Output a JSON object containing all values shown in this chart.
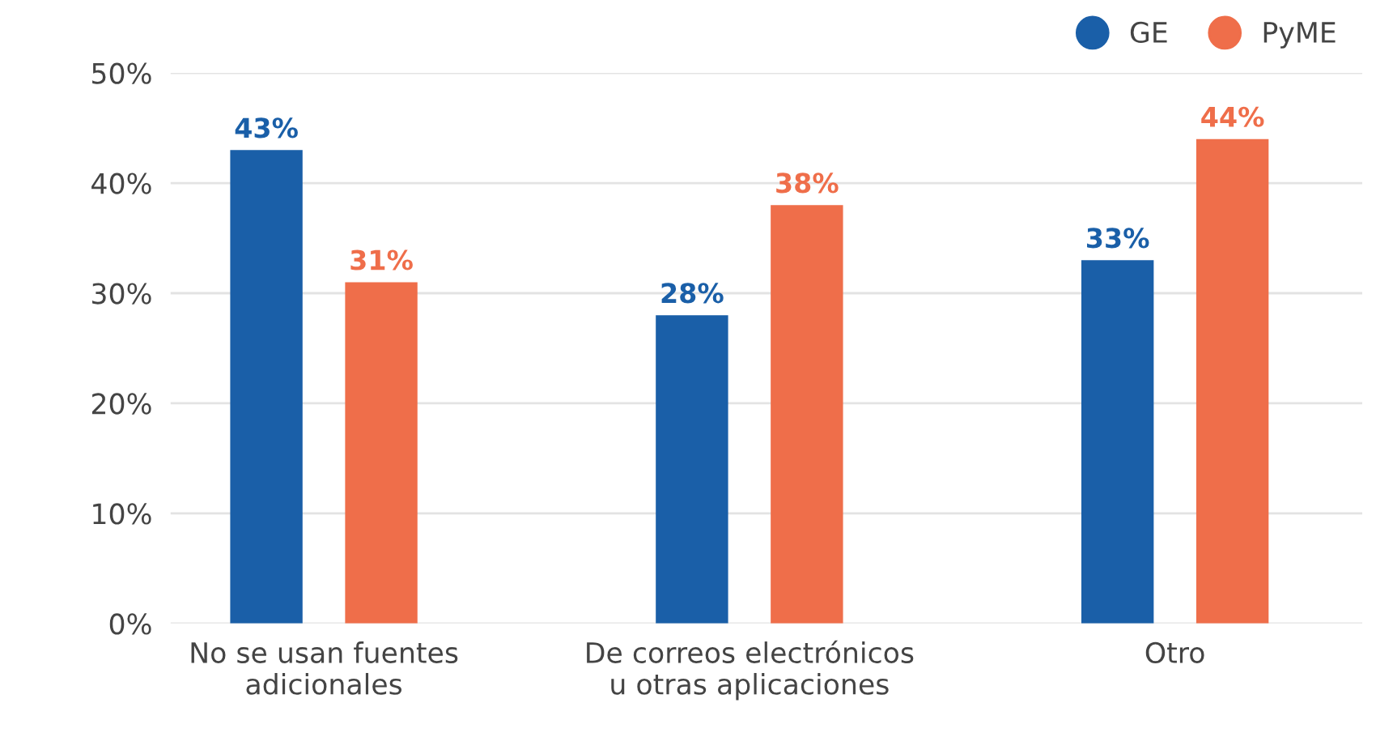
{
  "chart_data": {
    "type": "bar",
    "categories": [
      "No se usan fuentes\nadicionales",
      "De correos electrónicos\nu otras aplicaciones",
      "Otro"
    ],
    "series": [
      {
        "name": "GE",
        "color": "#1a5fa8",
        "values": [
          43,
          28,
          33
        ],
        "value_labels": [
          "43%",
          "28%",
          "33%"
        ]
      },
      {
        "name": "PyME",
        "color": "#ef6e4a",
        "values": [
          31,
          38,
          44
        ],
        "value_labels": [
          "31%",
          "38%",
          "44%"
        ]
      }
    ],
    "ylim": [
      0,
      50
    ],
    "yticks": [
      {
        "value": 0,
        "label": "0%"
      },
      {
        "value": 10,
        "label": "10%"
      },
      {
        "value": 20,
        "label": "20%"
      },
      {
        "value": 30,
        "label": "30%"
      },
      {
        "value": 40,
        "label": "40%"
      },
      {
        "value": 50,
        "label": "50%"
      }
    ],
    "grid": "y",
    "legend": "top right"
  }
}
